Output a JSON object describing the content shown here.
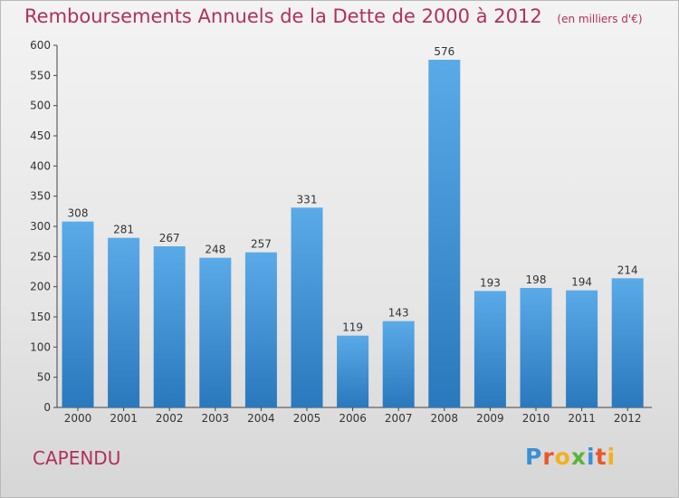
{
  "chart_data": {
    "type": "bar",
    "title": "Remboursements Annuels de la Dette de 2000 à 2012",
    "subtitle": "(en milliers d'€)",
    "categories": [
      "2000",
      "2001",
      "2002",
      "2003",
      "2004",
      "2005",
      "2006",
      "2007",
      "2008",
      "2009",
      "2010",
      "2011",
      "2012"
    ],
    "values": [
      308,
      281,
      267,
      248,
      257,
      331,
      119,
      143,
      576,
      193,
      198,
      194,
      214
    ],
    "ylim": [
      0,
      600
    ],
    "yticks": [
      0,
      50,
      100,
      150,
      200,
      250,
      300,
      350,
      400,
      450,
      500,
      550,
      600
    ],
    "grid": false,
    "colors": {
      "bar_top": "#5aaae8",
      "bar_bottom": "#2a78bd",
      "title": "#b0305c"
    }
  },
  "city": "CAPENDU",
  "logo": {
    "text": "Proxiti",
    "letters": [
      {
        "ch": "P",
        "color": "#3a8fd6"
      },
      {
        "ch": "r",
        "color": "#e8572a"
      },
      {
        "ch": "o",
        "color": "#f2b01e"
      },
      {
        "ch": "x",
        "color": "#5cb338"
      },
      {
        "ch": "i",
        "color": "#3a8fd6"
      },
      {
        "ch": "t",
        "color": "#e8572a"
      },
      {
        "ch": "i",
        "color": "#f2b01e"
      }
    ]
  }
}
